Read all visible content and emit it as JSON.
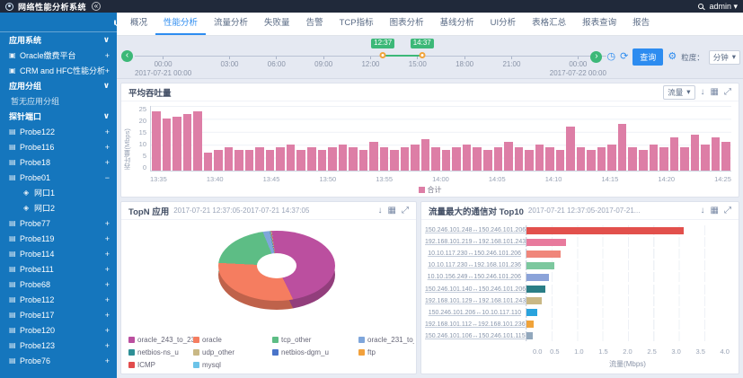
{
  "topbar": {
    "title": "网络性能分析系统",
    "user": "admin"
  },
  "icons": {
    "collapse": "«",
    "caret": "▾",
    "chevron_down": "∨",
    "plus": "+",
    "minus": "−",
    "prev": "‹",
    "next": "›",
    "clock": "◷",
    "refresh": "⟳",
    "gear": "⚙",
    "download": "↓",
    "table": "▦",
    "fullscreen": "⤢",
    "app": "▣",
    "probe": "▤",
    "port": "◈"
  },
  "sidebar": {
    "items": [
      {
        "type": "group",
        "label": "应用系统"
      },
      {
        "type": "app",
        "label": "Oracle缴费平台"
      },
      {
        "type": "app",
        "label": "CRM and HFC性能分析"
      },
      {
        "type": "group",
        "label": "应用分组"
      },
      {
        "type": "note",
        "label": "暂无应用分组"
      },
      {
        "type": "group",
        "label": "探针端口"
      },
      {
        "type": "probe",
        "label": "Probe122"
      },
      {
        "type": "probe",
        "label": "Probe116"
      },
      {
        "type": "probe",
        "label": "Probe18"
      },
      {
        "type": "probe",
        "label": "Probe01",
        "expanded": true
      },
      {
        "type": "port",
        "label": "网口1"
      },
      {
        "type": "port",
        "label": "网口2"
      },
      {
        "type": "probe",
        "label": "Probe77"
      },
      {
        "type": "probe",
        "label": "Probe119"
      },
      {
        "type": "probe",
        "label": "Probe114"
      },
      {
        "type": "probe",
        "label": "Probe111"
      },
      {
        "type": "probe",
        "label": "Probe68"
      },
      {
        "type": "probe",
        "label": "Probe112"
      },
      {
        "type": "probe",
        "label": "Probe117"
      },
      {
        "type": "probe",
        "label": "Probe120"
      },
      {
        "type": "probe",
        "label": "Probe123"
      },
      {
        "type": "probe",
        "label": "Probe76"
      }
    ]
  },
  "tabs": {
    "active": 1,
    "items": [
      "概况",
      "性能分析",
      "流量分析",
      "失败量",
      "告警",
      "TCP指标",
      "图表分析",
      "基线分析",
      "UI分析",
      "表格汇总",
      "报表查询",
      "报告"
    ]
  },
  "timeline": {
    "ticks": [
      "00:00",
      "03:00",
      "06:00",
      "09:00",
      "12:00",
      "15:00",
      "18:00",
      "21:00",
      "00:00"
    ],
    "start_date": "2017-07-21 00:00",
    "end_date": "2017-07-22 00:00",
    "range_start": "12:37",
    "range_end": "14:37",
    "range_start_pct": 52.6,
    "range_end_pct": 60.9,
    "query_label": "查询",
    "granularity_label": "粒度：",
    "granularity_value": "分钟"
  },
  "panels": {
    "throughput": {
      "series_select": "流量"
    }
  },
  "chart_data": [
    {
      "type": "bar",
      "title": "平均吞吐量",
      "ylabel": "吞吐量(Mbps)",
      "ylim": [
        0,
        25
      ],
      "yticks": [
        0,
        5,
        10,
        15,
        20,
        25
      ],
      "bar_color": "#dd7ea6",
      "legend_label": "合计",
      "x_tick_labels": [
        "13:35",
        "13:40",
        "13:45",
        "13:50",
        "13:55",
        "14:00",
        "14:05",
        "14:10",
        "14:15",
        "14:20",
        "14:25"
      ],
      "values": [
        23,
        20,
        21,
        22,
        23,
        7,
        8,
        9,
        8,
        8,
        9,
        8,
        9,
        10,
        8,
        9,
        8,
        9,
        10,
        9,
        8,
        11,
        9,
        8,
        9,
        10,
        12,
        9,
        8,
        9,
        10,
        9,
        8,
        9,
        11,
        9,
        8,
        10,
        9,
        8,
        17,
        9,
        8,
        9,
        10,
        18,
        9,
        8,
        10,
        9,
        13,
        9,
        14,
        10,
        13,
        11
      ]
    },
    {
      "type": "pie",
      "title": "TopN 应用",
      "time_range": "2017-07-21 12:37:05-2017-07-21 14:37:05",
      "slices": [
        {
          "name": "oracle_243_to_236",
          "pct": 45,
          "color": "#bb4f9f"
        },
        {
          "name": "oracle",
          "pct": 33,
          "color": "#f57d60"
        },
        {
          "name": "tcp_other",
          "pct": 18,
          "color": "#5dbd85"
        },
        {
          "name": "oracle_231_to_236",
          "pct": 3,
          "color": "#7fa6db"
        },
        {
          "name": "netbios-ns_u",
          "pct": 0.2,
          "color": "#2e8f96"
        },
        {
          "name": "udp_other",
          "pct": 0.2,
          "color": "#c9b885"
        },
        {
          "name": "netbios-dgm_u",
          "pct": 0.2,
          "color": "#4a74c9"
        },
        {
          "name": "ftp",
          "pct": 0.2,
          "color": "#f2a13c"
        },
        {
          "name": "ICMP",
          "pct": 0.1,
          "color": "#e24c4c"
        },
        {
          "name": "mysql",
          "pct": 0.1,
          "color": "#6cc3e8"
        }
      ]
    },
    {
      "type": "bar-horizontal",
      "title": "流量最大的通信对 Top10",
      "time_range": "2017-07-21 12:37:05-2017-07-21...",
      "xlabel": "流量(Mbps)",
      "xlim": [
        0,
        4
      ],
      "xticks": [
        "0.0",
        "0.5",
        "1.0",
        "1.5",
        "2.0",
        "2.5",
        "3.0",
        "3.5",
        "4.0"
      ],
      "bars": [
        {
          "pair": "150.246.101.248↔150.246.101.206",
          "value": 3.1,
          "color": "#e2504c"
        },
        {
          "pair": "192.168.101.219↔192.168.101.243",
          "value": 0.78,
          "color": "#e87a9d"
        },
        {
          "pair": "10.10.117.230↔150.246.101.206",
          "value": 0.68,
          "color": "#f0867a"
        },
        {
          "pair": "10.10.117.230↔192.168.101.236",
          "value": 0.55,
          "color": "#7cc89e"
        },
        {
          "pair": "10.10.156.249↔150.246.101.206",
          "value": 0.45,
          "color": "#8ba3d9"
        },
        {
          "pair": "150.246.101.140↔150.246.101.206",
          "value": 0.38,
          "color": "#2a7e86"
        },
        {
          "pair": "192.168.101.129↔192.168.101.243",
          "value": 0.3,
          "color": "#c9b885"
        },
        {
          "pair": "150.246.101.206↔10.10.117.110",
          "value": 0.22,
          "color": "#29a3dd"
        },
        {
          "pair": "192.168.101.112↔192.168.101.236",
          "value": 0.15,
          "color": "#f0a33a"
        },
        {
          "pair": "150.246.101.106↔150.246.101.115",
          "value": 0.12,
          "color": "#92a8bd"
        }
      ]
    }
  ]
}
